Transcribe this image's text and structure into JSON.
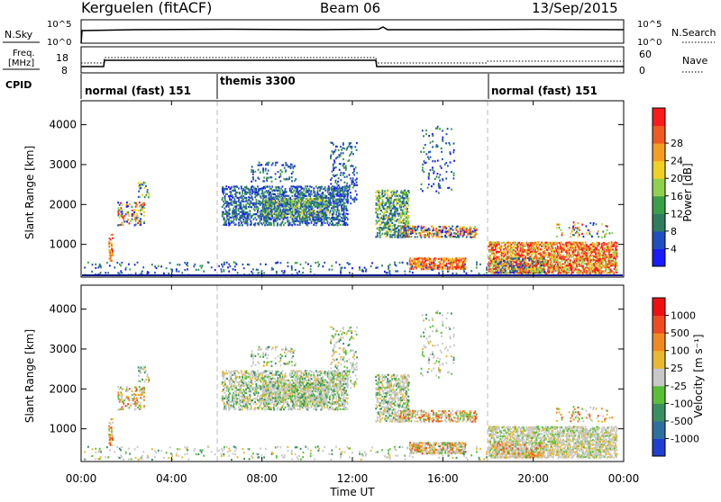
{
  "header": {
    "station": "Kerguelen (fitACF)",
    "beam": "Beam 06",
    "date": "13/Sep/2015"
  },
  "top_panel": {
    "left_label": "N.Sky",
    "right_label": "N.Search",
    "left_ticks": [
      "10^5",
      "10^0"
    ],
    "right_ticks": [
      "10^5",
      "10^0"
    ]
  },
  "freq_panel": {
    "left_label_1": "Freq.",
    "left_label_2": "[MHz]",
    "left_ticks": [
      "18",
      "8"
    ],
    "right_label": "Nave",
    "right_ticks": [
      "60",
      "0"
    ]
  },
  "cpid": {
    "label": "CPID",
    "modes": [
      {
        "name": "normal (fast) 151",
        "start_hour": 0
      },
      {
        "name": "themis 3300",
        "start_hour": 6
      },
      {
        "name": "normal (fast) 151",
        "start_hour": 18
      }
    ]
  },
  "time_axis": {
    "label": "Time UT",
    "ticks": [
      "00:00",
      "04:00",
      "08:00",
      "12:00",
      "16:00",
      "20:00",
      "00:00"
    ]
  },
  "chart_data": [
    {
      "type": "heatmap",
      "name": "power",
      "ylabel": "Slant Range [km]",
      "yticks": [
        "1000",
        "2000",
        "3000",
        "4000"
      ],
      "xlim_hours": [
        0,
        24
      ],
      "ylim_km": [
        180,
        4600
      ],
      "colorbar_label": "Power [dB]",
      "colorbar_ticks": [
        "4",
        "8",
        "12",
        "16",
        "20",
        "24",
        "28"
      ],
      "colorbar_colors": [
        "#1a1aff",
        "#2050c0",
        "#2e7d5e",
        "#3aa048",
        "#8fd14f",
        "#f0d020",
        "#f59d20",
        "#f05a20",
        "#ff1a1a"
      ]
    },
    {
      "type": "heatmap",
      "name": "velocity",
      "ylabel": "Slant Range [km]",
      "yticks": [
        "1000",
        "2000",
        "3000",
        "4000"
      ],
      "xlim_hours": [
        0,
        24
      ],
      "ylim_km": [
        180,
        4600
      ],
      "colorbar_label": "Velocity [m s⁻¹]",
      "colorbar_ticks": [
        "1000",
        "500",
        "100",
        "25",
        "-25",
        "-100",
        "-500",
        "-1000"
      ],
      "colorbar_colors": [
        "#1f3fd0",
        "#2f6fa0",
        "#3a8f60",
        "#58c038",
        "#c8c8c8",
        "#e8b830",
        "#f08a20",
        "#f04a20",
        "#f01010"
      ]
    }
  ]
}
